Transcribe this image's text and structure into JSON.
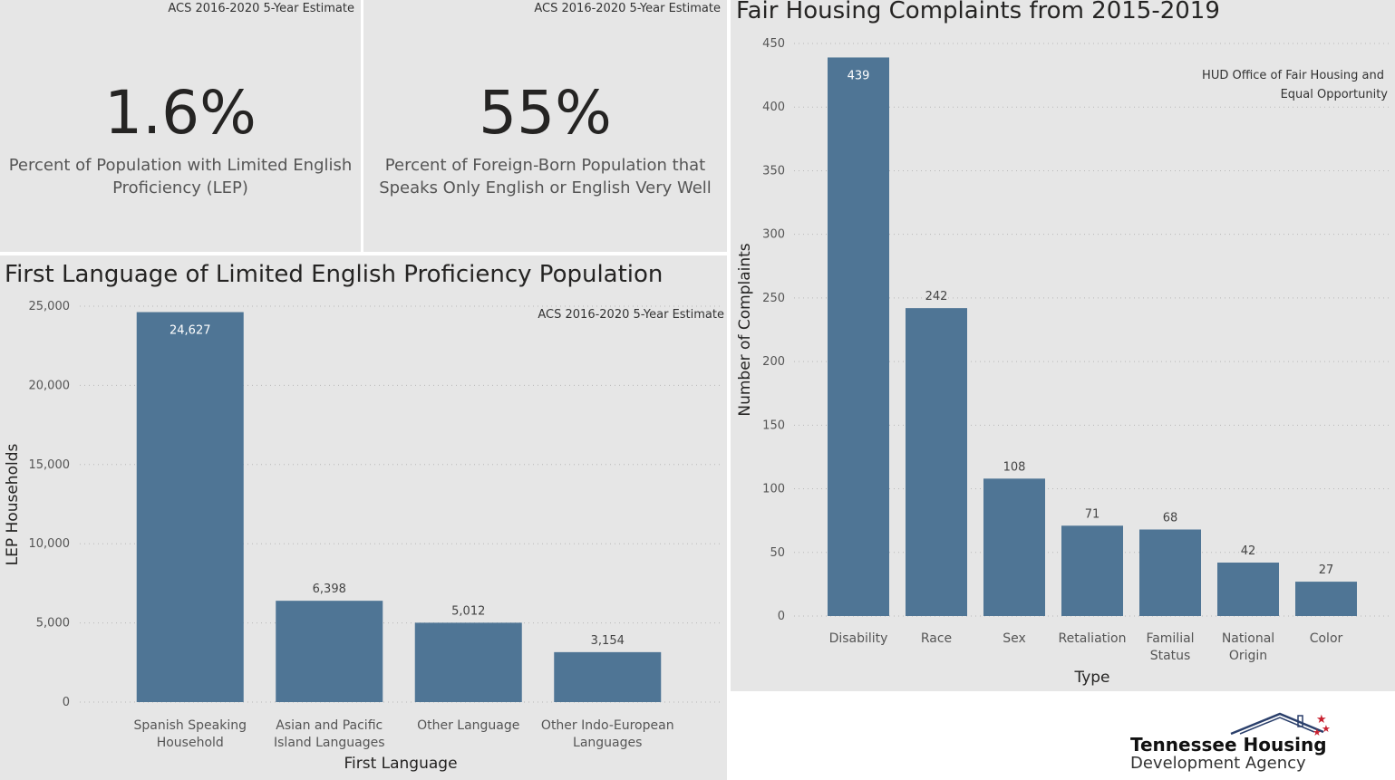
{
  "kpi_cards": [
    {
      "source": "ACS 2016-2020 5-Year Estimate",
      "value": "1.6%",
      "label_line1": "Percent of Population with Limited English",
      "label_line2": "Proficiency (LEP)"
    },
    {
      "source": "ACS 2016-2020 5-Year Estimate",
      "value": "55%",
      "label_line1": "Percent of Foreign-Born Population that",
      "label_line2": "Speaks Only English or English Very Well"
    }
  ],
  "chart_data": [
    {
      "type": "bar",
      "title": "First Language of Limited English Proficiency Population",
      "source": "ACS 2016-2020 5-Year Estimate",
      "xlabel": "First Language",
      "ylabel": "LEP Households",
      "categories": [
        [
          "Spanish Speaking",
          "Household"
        ],
        [
          "Asian and Pacific",
          "Island Languages"
        ],
        [
          "Other Language"
        ],
        [
          "Other Indo-European",
          "Languages"
        ]
      ],
      "values": [
        24627,
        6398,
        5012,
        3154
      ],
      "value_labels": [
        "24,627",
        "6,398",
        "5,012",
        "3,154"
      ],
      "yticks": [
        0,
        5000,
        10000,
        15000,
        20000,
        25000
      ],
      "ytick_labels": [
        "0",
        "5,000",
        "10,000",
        "15,000",
        "20,000",
        "25,000"
      ],
      "ylim": [
        0,
        25000
      ],
      "grid": true,
      "bar_color": "#4f7595"
    },
    {
      "type": "bar",
      "title": "Fair Housing Complaints from 2015-2019",
      "source_line1": "HUD Office of Fair Housing and",
      "source_line2": "Equal Opportunity",
      "xlabel": "Type",
      "ylabel": "Number of Complaints",
      "categories": [
        [
          "Disability"
        ],
        [
          "Race"
        ],
        [
          "Sex"
        ],
        [
          "Retaliation"
        ],
        [
          "Familial",
          "Status"
        ],
        [
          "National",
          "Origin"
        ],
        [
          "Color"
        ]
      ],
      "values": [
        439,
        242,
        108,
        71,
        68,
        42,
        27
      ],
      "value_labels": [
        "439",
        "242",
        "108",
        "71",
        "68",
        "42",
        "27"
      ],
      "yticks": [
        0,
        50,
        100,
        150,
        200,
        250,
        300,
        350,
        400,
        450
      ],
      "ytick_labels": [
        "0",
        "50",
        "100",
        "150",
        "200",
        "250",
        "300",
        "350",
        "400",
        "450"
      ],
      "ylim": [
        0,
        450
      ],
      "grid": true,
      "bar_color": "#4f7595"
    }
  ],
  "logo": {
    "line1": "Tennessee Housing",
    "line2": "Development Agency"
  },
  "colors": {
    "panel_bg": "#e6e6e6",
    "bar": "#4f7595",
    "logo_star": "#c8202f",
    "logo_roof": "#2a3f6b"
  }
}
